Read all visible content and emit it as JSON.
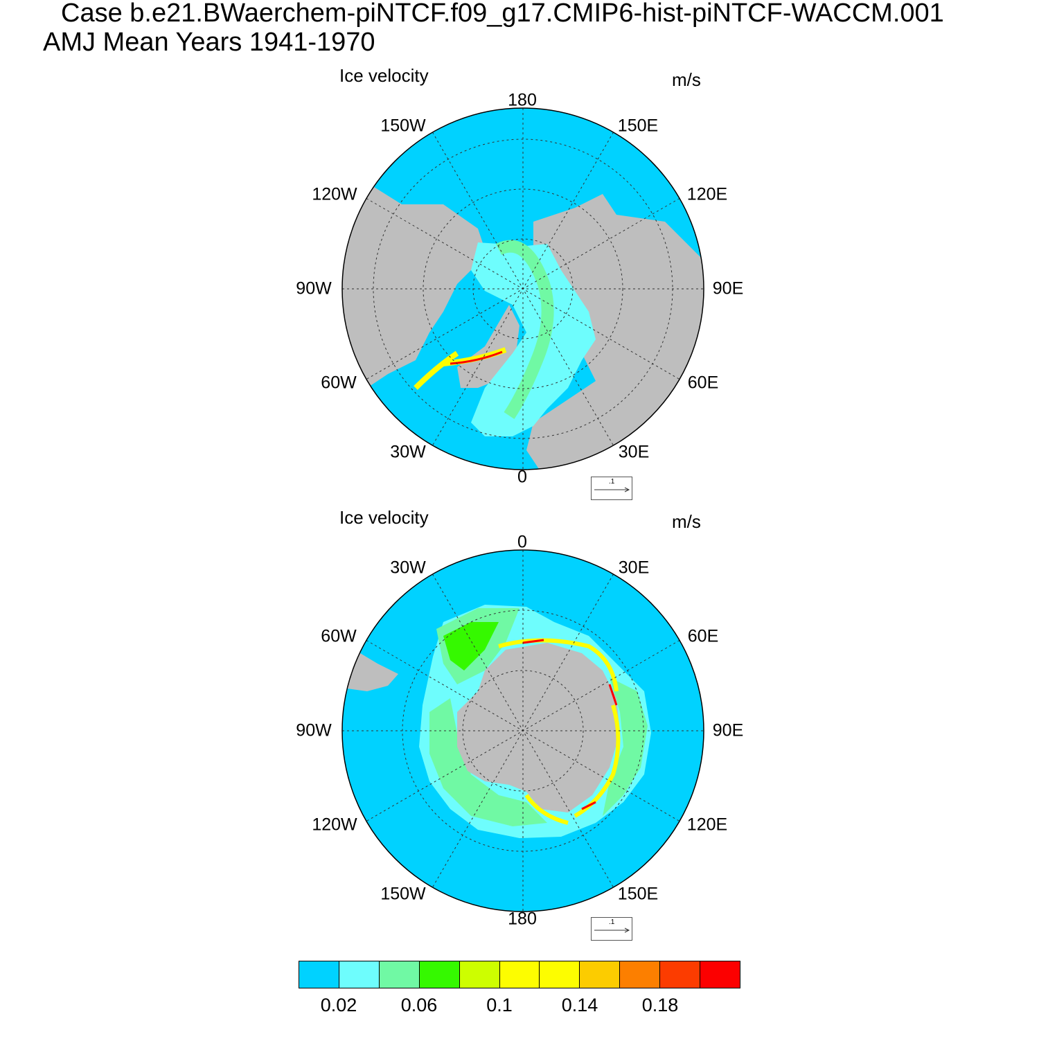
{
  "header": {
    "case_title": "Case b.e21.BWaerchem-piNTCF.f09_g17.CMIP6-hist-piNTCF-WACCM.001",
    "season_title": "AMJ Mean   Years 1941-1970"
  },
  "panels": [
    {
      "id": "north",
      "title": "Ice velocity",
      "units": "m/s",
      "hemisphere": "north",
      "lon_labels": [
        "180",
        "150E",
        "120E",
        "90E",
        "60E",
        "30E",
        "0",
        "30W",
        "60W",
        "90W",
        "120W",
        "150W"
      ],
      "reference_vector_label": ".1"
    },
    {
      "id": "south",
      "title": "Ice velocity",
      "units": "m/s",
      "hemisphere": "south",
      "lon_labels": [
        "0",
        "30E",
        "60E",
        "90E",
        "120E",
        "150E",
        "180",
        "150W",
        "120W",
        "90W",
        "60W",
        "30W"
      ],
      "reference_vector_label": ".1"
    }
  ],
  "colorbar": {
    "colors": [
      "#00d2ff",
      "#6efdfd",
      "#70f9a4",
      "#35f900",
      "#cdfe00",
      "#fdfd00",
      "#fdfd00",
      "#fccc00",
      "#fc7f00",
      "#fc3c00",
      "#fc0000"
    ],
    "labels": [
      "0.02",
      "0.06",
      "0.1",
      "0.14",
      "0.18"
    ]
  },
  "colors": {
    "ocean": "#00d2ff",
    "land": "#bebebe",
    "gridline": "#333333"
  }
}
